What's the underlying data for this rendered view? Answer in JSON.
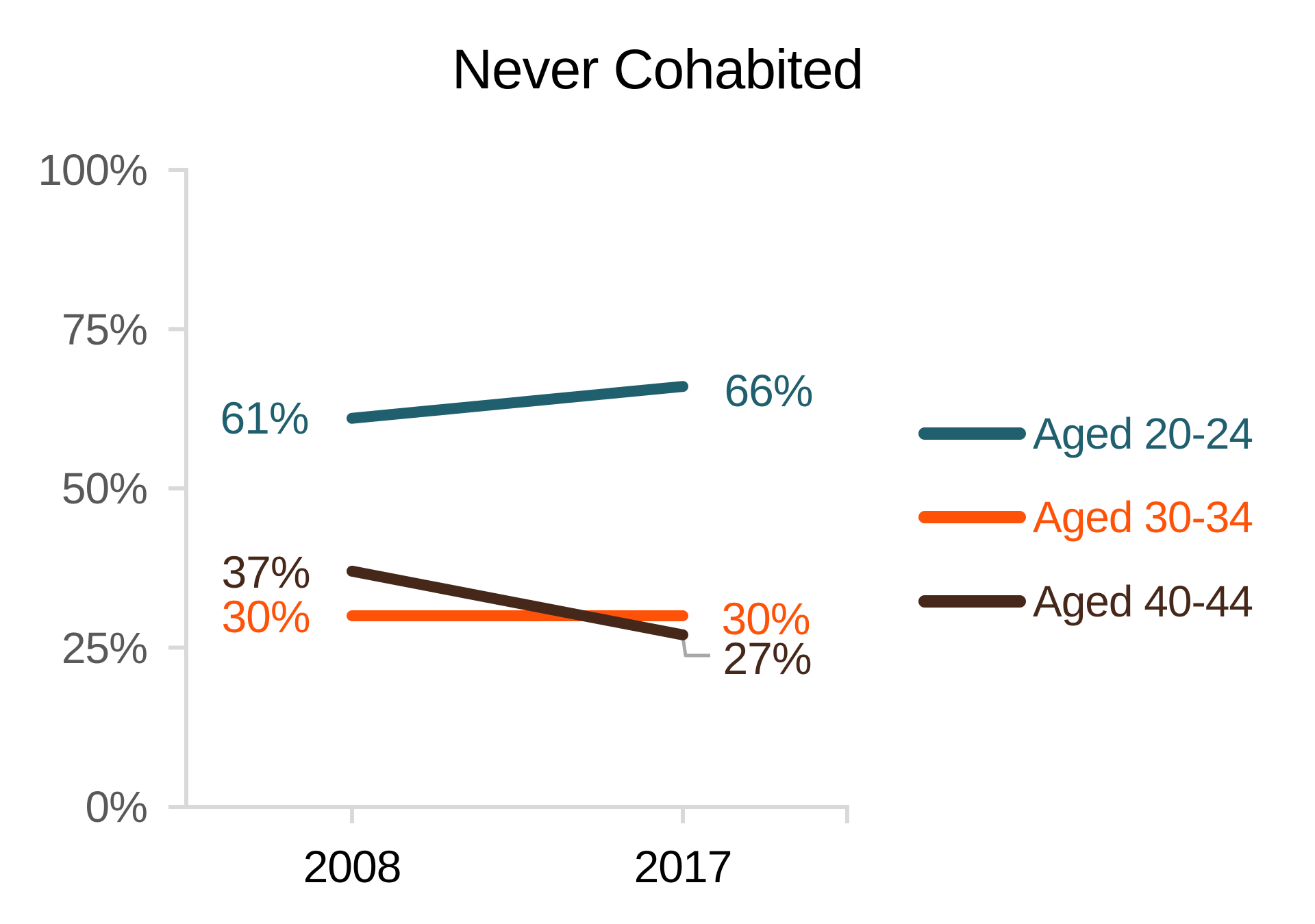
{
  "chart_data": {
    "type": "line",
    "title": "Never Cohabited",
    "x_categories": [
      "2008",
      "2017"
    ],
    "y_axis": {
      "min": 0,
      "max": 100,
      "tick_labels": [
        "100%",
        "75%",
        "50%",
        "25%",
        "0%"
      ],
      "tick_values": [
        100,
        75,
        50,
        25,
        0
      ],
      "unit": "percent",
      "grid": false
    },
    "series": [
      {
        "name": "Aged 20-24",
        "color": "#1F5F6E",
        "values": [
          61,
          66
        ],
        "point_labels": [
          "61%",
          "66%"
        ]
      },
      {
        "name": "Aged 30-34",
        "color": "#FF5209",
        "values": [
          30,
          30
        ],
        "point_labels": [
          "30%",
          "30%"
        ]
      },
      {
        "name": "Aged 40-44",
        "color": "#46281A",
        "values": [
          37,
          27
        ],
        "point_labels": [
          "37%",
          "27%"
        ]
      }
    ],
    "legend_position": "right",
    "colors": {
      "axis_line": "#D9D9D9",
      "y_tick_label": "#595959",
      "x_tick_label": "#000000",
      "title": "#000000",
      "leader_line": "#A8A8A8"
    }
  }
}
